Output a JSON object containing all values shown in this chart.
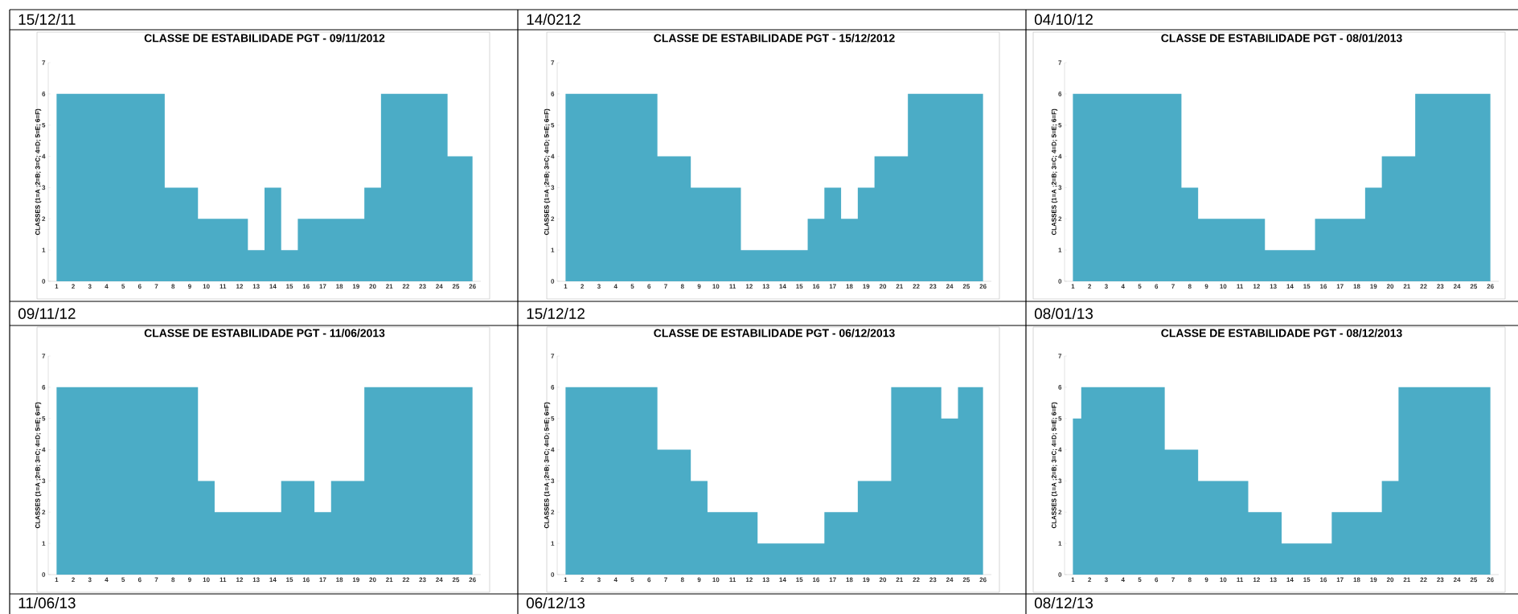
{
  "chart_data": [
    {
      "type": "area",
      "title": "CLASSE DE ESTABILIDADE PGT - 09/11/2012",
      "ylabel": "CLASSES (1=A ;2=B; 3=C; 4=D; 5=E; 6=F)",
      "annotations": [
        "15/12/11"
      ],
      "categories": [
        "1",
        "2",
        "3",
        "4",
        "5",
        "6",
        "7",
        "8",
        "9",
        "10",
        "11",
        "12",
        "13",
        "14",
        "15",
        "16",
        "17",
        "18",
        "19",
        "20",
        "21",
        "22",
        "23",
        "24",
        "25",
        "26"
      ],
      "values": [
        6,
        6,
        6,
        6,
        6,
        6,
        6,
        3,
        3,
        2,
        2,
        2,
        1,
        3,
        1,
        2,
        2,
        2,
        2,
        3,
        6,
        6,
        6,
        6,
        4,
        4
      ],
      "color": "#4bacc6",
      "ylim": [
        0,
        7
      ],
      "yticks": [
        0,
        1,
        2,
        3,
        4,
        5,
        6,
        7
      ]
    },
    {
      "type": "area",
      "title": "CLASSE DE ESTABILIDADE PGT - 15/12/2012",
      "ylabel": "CLASSES (1=A ;2=B; 3=C; 4=D; 5=E; 6=F)",
      "annotations": [
        "14/0212"
      ],
      "categories": [
        "1",
        "2",
        "3",
        "4",
        "5",
        "6",
        "7",
        "8",
        "9",
        "10",
        "11",
        "12",
        "13",
        "14",
        "15",
        "16",
        "17",
        "18",
        "19",
        "20",
        "21",
        "22",
        "23",
        "24",
        "25",
        "26"
      ],
      "values": [
        6,
        6,
        6,
        6,
        6,
        6,
        4,
        4,
        3,
        3,
        3,
        1,
        1,
        1,
        1,
        2,
        3,
        2,
        3,
        4,
        4,
        6,
        6,
        6,
        6,
        6
      ],
      "color": "#4bacc6",
      "ylim": [
        0,
        7
      ],
      "yticks": [
        0,
        1,
        2,
        3,
        4,
        5,
        6,
        7
      ]
    },
    {
      "type": "area",
      "title": "CLASSE DE ESTABILIDADE PGT - 08/01/2013",
      "ylabel": "CLASSES (1=A ;2=B; 3=C; 4=D; 5=E; 6=F)",
      "annotations": [
        "04/10/12"
      ],
      "categories": [
        "1",
        "2",
        "3",
        "4",
        "5",
        "6",
        "7",
        "8",
        "9",
        "10",
        "11",
        "12",
        "13",
        "14",
        "15",
        "16",
        "17",
        "18",
        "19",
        "20",
        "21",
        "22",
        "23",
        "24",
        "25",
        "26"
      ],
      "values": [
        6,
        6,
        6,
        6,
        6,
        6,
        6,
        3,
        2,
        2,
        2,
        2,
        1,
        1,
        1,
        2,
        2,
        2,
        3,
        4,
        4,
        6,
        6,
        6,
        6,
        6
      ],
      "color": "#4bacc6",
      "ylim": [
        0,
        7
      ],
      "yticks": [
        0,
        1,
        2,
        3,
        4,
        5,
        6,
        7
      ]
    },
    {
      "type": "area",
      "title": "CLASSE DE ESTABILIDADE PGT - 11/06/2013",
      "ylabel": "CLASSES (1=A ;2=B; 3=C; 4=D; 5=E; 6=F)",
      "annotations": [
        "09/11/12",
        "11/06/13"
      ],
      "categories": [
        "1",
        "2",
        "3",
        "4",
        "5",
        "6",
        "7",
        "8",
        "9",
        "10",
        "11",
        "12",
        "13",
        "14",
        "15",
        "16",
        "17",
        "18",
        "19",
        "20",
        "21",
        "22",
        "23",
        "24",
        "25",
        "26"
      ],
      "values": [
        6,
        6,
        6,
        6,
        6,
        6,
        6,
        6,
        6,
        3,
        2,
        2,
        2,
        2,
        3,
        3,
        2,
        3,
        3,
        6,
        6,
        6,
        6,
        6,
        6,
        6
      ],
      "color": "#4bacc6",
      "ylim": [
        0,
        7
      ],
      "yticks": [
        0,
        1,
        2,
        3,
        4,
        5,
        6,
        7
      ]
    },
    {
      "type": "area",
      "title": "CLASSE DE ESTABILIDADE PGT - 06/12/2013",
      "ylabel": "CLASSES (1=A ;2=B; 3=C; 4=D; 5=E; 6=F)",
      "annotations": [
        "15/12/12",
        "06/12/13"
      ],
      "categories": [
        "1",
        "2",
        "3",
        "4",
        "5",
        "6",
        "7",
        "8",
        "9",
        "10",
        "11",
        "12",
        "13",
        "14",
        "15",
        "16",
        "17",
        "18",
        "19",
        "20",
        "21",
        "22",
        "23",
        "24",
        "25",
        "26"
      ],
      "values": [
        6,
        6,
        6,
        6,
        6,
        6,
        4,
        4,
        3,
        2,
        2,
        2,
        1,
        1,
        1,
        1,
        2,
        2,
        3,
        3,
        6,
        6,
        6,
        5,
        6,
        6
      ],
      "color": "#4bacc6",
      "ylim": [
        0,
        7
      ],
      "yticks": [
        0,
        1,
        2,
        3,
        4,
        5,
        6,
        7
      ]
    },
    {
      "type": "area",
      "title": "CLASSE DE ESTABILIDADE PGT - 08/12/2013",
      "ylabel": "CLASSES (1=A ;2=B; 3=C; 4=D; 5=E; 6=F)",
      "annotations": [
        "08/01/13",
        "08/12/13"
      ],
      "categories": [
        "1",
        "2",
        "3",
        "4",
        "5",
        "6",
        "7",
        "8",
        "9",
        "10",
        "11",
        "12",
        "13",
        "14",
        "15",
        "16",
        "17",
        "18",
        "19",
        "20",
        "21",
        "22",
        "23",
        "24",
        "25",
        "26"
      ],
      "values": [
        5,
        6,
        6,
        6,
        6,
        6,
        4,
        4,
        3,
        3,
        3,
        2,
        2,
        1,
        1,
        1,
        2,
        2,
        2,
        3,
        6,
        6,
        6,
        6,
        6,
        6
      ],
      "color": "#4bacc6",
      "ylim": [
        0,
        7
      ],
      "yticks": [
        0,
        1,
        2,
        3,
        4,
        5,
        6,
        7
      ]
    }
  ]
}
